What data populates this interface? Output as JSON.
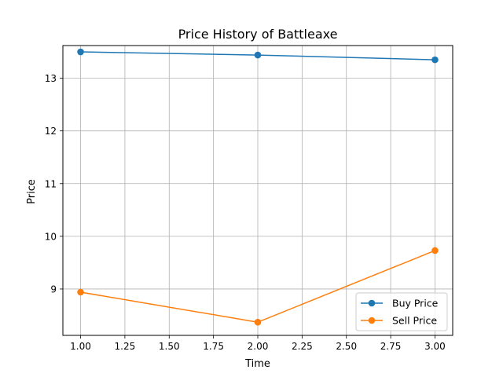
{
  "chart_data": {
    "type": "line",
    "title": "Price History of Battleaxe",
    "xlabel": "Time",
    "ylabel": "Price",
    "xlim": [
      0.9,
      3.1
    ],
    "ylim": [
      8.12,
      13.62
    ],
    "xticks": [
      "1.00",
      "1.25",
      "1.50",
      "1.75",
      "2.00",
      "2.25",
      "2.50",
      "2.75",
      "3.00"
    ],
    "yticks": [
      "9",
      "10",
      "11",
      "12",
      "13"
    ],
    "grid": true,
    "legend_position": "lower-right",
    "x": [
      1,
      2,
      3
    ],
    "series": [
      {
        "name": "Buy Price",
        "color": "#1f77b4",
        "values": [
          13.5,
          13.44,
          13.35
        ]
      },
      {
        "name": "Sell Price",
        "color": "#ff7f0e",
        "values": [
          8.94,
          8.37,
          9.73
        ]
      }
    ]
  }
}
